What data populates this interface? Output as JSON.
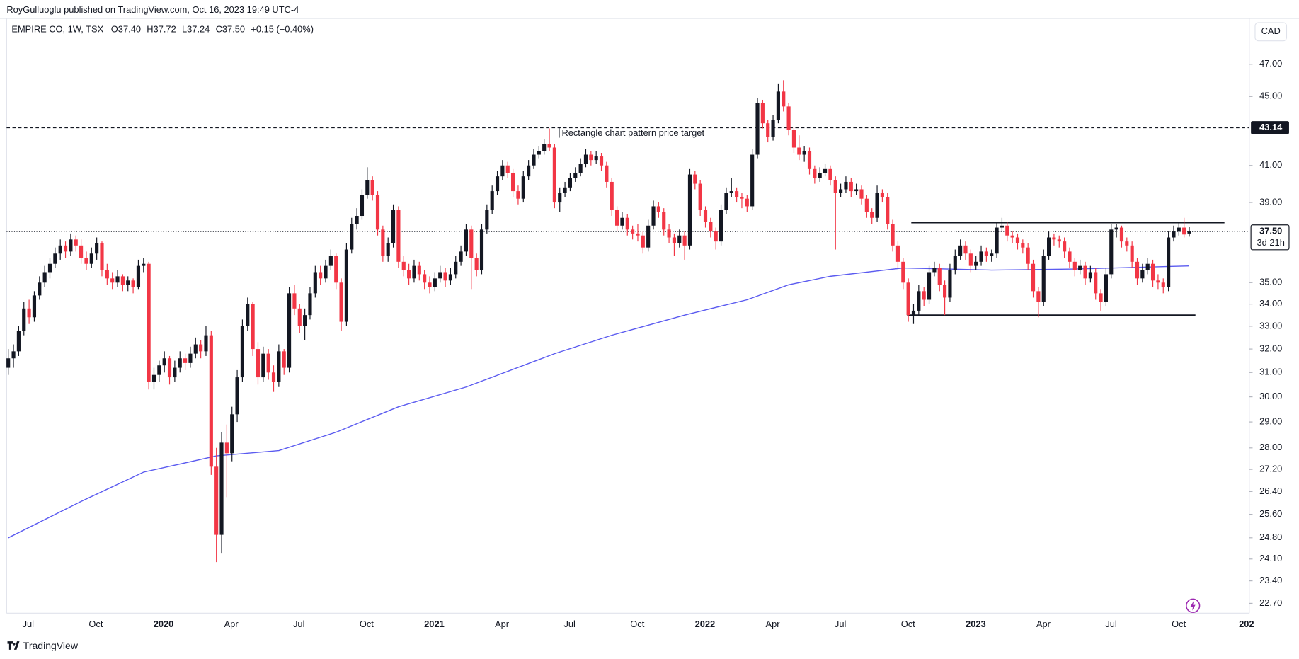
{
  "header": {
    "publisher": "RoyGulluoglu published on TradingView.com, Oct 16, 2023 19:49 UTC-4",
    "symbol": "EMPIRE CO, 1W, TSX",
    "o_label": "O",
    "open": "37.40",
    "h_label": "H",
    "high": "37.72",
    "l_label": "L",
    "low": "37.24",
    "c_label": "C",
    "close": "37.50",
    "change": "+0.15 (+0.40%)"
  },
  "currency_button": "CAD",
  "footer": "TradingView",
  "chart_data": {
    "type": "candlestick",
    "log_scale": true,
    "colors": {
      "up": "#131722",
      "down": "#f23645"
    },
    "ylim": [
      22.4,
      50.0
    ],
    "yticks": [
      {
        "value": 22.7,
        "label": "22.70"
      },
      {
        "value": 23.4,
        "label": "23.40"
      },
      {
        "value": 24.1,
        "label": "24.10"
      },
      {
        "value": 24.8,
        "label": "24.80"
      },
      {
        "value": 25.6,
        "label": "25.60"
      },
      {
        "value": 26.4,
        "label": "26.40"
      },
      {
        "value": 27.2,
        "label": "27.20"
      },
      {
        "value": 28,
        "label": "28.00"
      },
      {
        "value": 29,
        "label": "29.00"
      },
      {
        "value": 30,
        "label": "30.00"
      },
      {
        "value": 31,
        "label": "31.00"
      },
      {
        "value": 32,
        "label": "32.00"
      },
      {
        "value": 33,
        "label": "33.00"
      },
      {
        "value": 34,
        "label": "34.00"
      },
      {
        "value": 35,
        "label": "35.00"
      },
      {
        "value": 39,
        "label": "39.00"
      },
      {
        "value": 41,
        "label": "41.00"
      },
      {
        "value": 45,
        "label": "45.00"
      },
      {
        "value": 47,
        "label": "47.00"
      }
    ],
    "xtick_labels": [
      "Jul",
      "Oct",
      "2020",
      "Apr",
      "Jul",
      "Oct",
      "2021",
      "Apr",
      "Jul",
      "Oct",
      "2022",
      "Apr",
      "Jul",
      "Oct",
      "2023",
      "Apr",
      "Jul",
      "Oct",
      "202"
    ],
    "annotation": "Rectangle chart pattern price target",
    "levels": [
      {
        "value": 43.14,
        "label": "43.14",
        "style": "dashed"
      },
      {
        "value": 37.5,
        "label": "37.50",
        "note": "3d 21h",
        "style": "dotted"
      }
    ],
    "pattern_lines": [
      37.95,
      33.5
    ],
    "moving_average": {
      "color": "#5b5bf0",
      "x": [
        0,
        14,
        26,
        40,
        52,
        63,
        75,
        88,
        105,
        116,
        130,
        142,
        150,
        158,
        172,
        189,
        205,
        227
      ],
      "values": [
        24.8,
        26.05,
        27.1,
        27.7,
        27.9,
        28.6,
        29.6,
        30.4,
        31.8,
        32.6,
        33.5,
        34.2,
        34.9,
        35.3,
        35.7,
        35.6,
        35.65,
        35.8
      ]
    },
    "candles": [
      [
        31.2,
        32.0,
        30.9,
        31.6
      ],
      [
        31.6,
        32.2,
        31.2,
        31.9
      ],
      [
        31.9,
        33.0,
        31.7,
        32.8
      ],
      [
        32.8,
        34.1,
        32.6,
        33.8
      ],
      [
        33.8,
        34.2,
        33.1,
        33.4
      ],
      [
        33.4,
        34.6,
        33.2,
        34.4
      ],
      [
        34.4,
        35.3,
        34.2,
        35.0
      ],
      [
        35.0,
        35.8,
        34.8,
        35.5
      ],
      [
        35.5,
        36.2,
        35.2,
        35.9
      ],
      [
        35.9,
        36.7,
        35.7,
        36.4
      ],
      [
        36.4,
        37.1,
        36.1,
        36.8
      ],
      [
        36.8,
        37.0,
        36.2,
        36.5
      ],
      [
        36.5,
        37.4,
        36.3,
        37.1
      ],
      [
        37.1,
        37.3,
        36.5,
        36.8
      ],
      [
        36.8,
        37.1,
        35.9,
        36.2
      ],
      [
        36.2,
        36.5,
        35.6,
        35.9
      ],
      [
        35.9,
        36.7,
        35.7,
        36.4
      ],
      [
        36.4,
        37.2,
        36.1,
        36.9
      ],
      [
        36.9,
        37.0,
        35.3,
        35.6
      ],
      [
        35.6,
        35.9,
        34.9,
        35.2
      ],
      [
        35.2,
        35.5,
        34.7,
        35.0
      ],
      [
        35.0,
        35.6,
        34.8,
        35.3
      ],
      [
        35.3,
        35.4,
        34.6,
        34.9
      ],
      [
        34.9,
        35.3,
        34.6,
        35.1
      ],
      [
        35.1,
        35.2,
        34.5,
        34.8
      ],
      [
        34.8,
        36.1,
        34.7,
        35.8
      ],
      [
        35.8,
        36.2,
        35.5,
        35.9
      ],
      [
        35.9,
        36.0,
        30.3,
        30.6
      ],
      [
        30.6,
        31.2,
        30.3,
        30.9
      ],
      [
        30.9,
        31.5,
        30.6,
        31.3
      ],
      [
        31.3,
        31.9,
        31.0,
        31.6
      ],
      [
        31.6,
        31.7,
        30.5,
        30.8
      ],
      [
        30.8,
        31.5,
        30.6,
        31.2
      ],
      [
        31.2,
        31.9,
        31.0,
        31.6
      ],
      [
        31.6,
        31.8,
        31.1,
        31.4
      ],
      [
        31.4,
        32.1,
        31.2,
        31.8
      ],
      [
        31.8,
        32.5,
        31.6,
        32.2
      ],
      [
        32.2,
        32.4,
        31.6,
        31.9
      ],
      [
        31.9,
        33.0,
        31.7,
        32.6
      ],
      [
        32.6,
        32.8,
        27.0,
        27.3
      ],
      [
        27.3,
        28.0,
        24.0,
        24.9
      ],
      [
        24.9,
        28.6,
        24.3,
        28.2
      ],
      [
        28.2,
        28.9,
        26.2,
        27.8
      ],
      [
        27.8,
        29.6,
        27.5,
        29.3
      ],
      [
        29.3,
        31.1,
        29.0,
        30.8
      ],
      [
        30.8,
        33.3,
        30.6,
        33.0
      ],
      [
        33.0,
        34.3,
        32.8,
        34.0
      ],
      [
        34.0,
        34.1,
        31.7,
        32.0
      ],
      [
        32.0,
        32.3,
        30.5,
        30.8
      ],
      [
        30.8,
        32.1,
        30.6,
        31.8
      ],
      [
        31.8,
        32.0,
        30.7,
        31.0
      ],
      [
        31.0,
        31.3,
        30.2,
        30.6
      ],
      [
        30.6,
        32.2,
        30.4,
        31.9
      ],
      [
        31.9,
        32.0,
        30.9,
        31.2
      ],
      [
        31.2,
        34.8,
        31.0,
        34.5
      ],
      [
        34.5,
        34.9,
        33.5,
        33.8
      ],
      [
        33.8,
        34.0,
        32.7,
        33.0
      ],
      [
        33.0,
        33.8,
        32.4,
        33.5
      ],
      [
        33.5,
        34.8,
        33.3,
        34.5
      ],
      [
        34.5,
        35.8,
        34.3,
        35.5
      ],
      [
        35.5,
        35.8,
        34.9,
        35.2
      ],
      [
        35.2,
        36.1,
        35.0,
        35.8
      ],
      [
        35.8,
        36.6,
        35.6,
        36.3
      ],
      [
        36.3,
        36.4,
        34.7,
        35.0
      ],
      [
        35.0,
        35.2,
        32.8,
        33.2
      ],
      [
        33.2,
        36.9,
        33.0,
        36.6
      ],
      [
        36.6,
        38.2,
        36.4,
        37.9
      ],
      [
        37.9,
        38.7,
        37.6,
        38.3
      ],
      [
        38.3,
        39.7,
        38.1,
        39.4
      ],
      [
        39.4,
        40.9,
        39.2,
        40.2
      ],
      [
        40.2,
        40.4,
        39.1,
        39.4
      ],
      [
        39.4,
        39.6,
        37.3,
        37.6
      ],
      [
        37.6,
        37.8,
        36.0,
        36.3
      ],
      [
        36.3,
        37.2,
        36.0,
        36.9
      ],
      [
        36.9,
        38.9,
        36.7,
        38.6
      ],
      [
        38.6,
        38.8,
        35.7,
        36.0
      ],
      [
        36.0,
        36.3,
        35.3,
        35.6
      ],
      [
        35.6,
        35.9,
        34.9,
        35.2
      ],
      [
        35.2,
        36.1,
        35.0,
        35.8
      ],
      [
        35.8,
        36.0,
        35.1,
        35.4
      ],
      [
        35.4,
        35.6,
        34.7,
        35.0
      ],
      [
        35.0,
        35.3,
        34.5,
        34.8
      ],
      [
        34.8,
        35.5,
        34.6,
        35.2
      ],
      [
        35.2,
        35.8,
        35.0,
        35.5
      ],
      [
        35.5,
        35.7,
        34.8,
        35.1
      ],
      [
        35.1,
        35.7,
        34.9,
        35.4
      ],
      [
        35.4,
        36.3,
        35.2,
        36.0
      ],
      [
        36.0,
        36.8,
        35.8,
        36.5
      ],
      [
        36.5,
        37.9,
        36.3,
        37.6
      ],
      [
        37.6,
        37.8,
        34.7,
        36.2
      ],
      [
        36.2,
        36.4,
        35.3,
        35.6
      ],
      [
        35.6,
        37.9,
        35.4,
        37.6
      ],
      [
        37.6,
        38.9,
        37.4,
        38.6
      ],
      [
        38.6,
        39.9,
        38.4,
        39.6
      ],
      [
        39.6,
        40.7,
        39.4,
        40.4
      ],
      [
        40.4,
        41.3,
        40.2,
        41.0
      ],
      [
        41.0,
        41.2,
        40.3,
        40.6
      ],
      [
        40.6,
        40.8,
        39.3,
        39.6
      ],
      [
        39.6,
        39.9,
        38.9,
        39.2
      ],
      [
        39.2,
        40.7,
        39.0,
        40.4
      ],
      [
        40.4,
        41.3,
        40.2,
        41.0
      ],
      [
        41.0,
        41.9,
        40.8,
        41.6
      ],
      [
        41.6,
        42.1,
        41.4,
        41.8
      ],
      [
        41.8,
        42.5,
        41.6,
        42.2
      ],
      [
        42.2,
        43.1,
        41.8,
        42.0
      ],
      [
        42.0,
        42.2,
        38.7,
        39.0
      ],
      [
        39.0,
        39.8,
        38.5,
        39.5
      ],
      [
        39.5,
        40.1,
        39.3,
        39.8
      ],
      [
        39.8,
        40.6,
        39.6,
        40.3
      ],
      [
        40.3,
        40.9,
        40.1,
        40.6
      ],
      [
        40.6,
        41.4,
        40.4,
        41.1
      ],
      [
        41.1,
        41.9,
        40.9,
        41.6
      ],
      [
        41.6,
        41.8,
        41.0,
        41.3
      ],
      [
        41.3,
        41.8,
        41.1,
        41.5
      ],
      [
        41.5,
        41.7,
        40.7,
        41.0
      ],
      [
        41.0,
        41.2,
        39.8,
        40.1
      ],
      [
        40.1,
        40.3,
        38.3,
        38.6
      ],
      [
        38.6,
        38.8,
        37.5,
        37.8
      ],
      [
        37.8,
        38.5,
        37.6,
        38.2
      ],
      [
        38.2,
        38.4,
        37.3,
        37.6
      ],
      [
        37.6,
        37.8,
        37.1,
        37.4
      ],
      [
        37.4,
        37.9,
        37.0,
        37.3
      ],
      [
        37.3,
        37.5,
        36.4,
        36.7
      ],
      [
        36.7,
        38.1,
        36.5,
        37.8
      ],
      [
        37.8,
        39.1,
        37.6,
        38.8
      ],
      [
        38.8,
        39.0,
        38.2,
        38.5
      ],
      [
        38.5,
        38.7,
        37.3,
        37.6
      ],
      [
        37.6,
        37.9,
        36.9,
        37.2
      ],
      [
        37.2,
        37.4,
        36.3,
        36.9
      ],
      [
        36.9,
        37.6,
        36.7,
        37.3
      ],
      [
        37.3,
        37.5,
        36.1,
        36.8
      ],
      [
        36.8,
        40.8,
        36.6,
        40.5
      ],
      [
        40.5,
        40.7,
        39.7,
        40.0
      ],
      [
        40.0,
        40.2,
        38.3,
        38.6
      ],
      [
        38.6,
        38.8,
        37.7,
        38.0
      ],
      [
        38.0,
        38.2,
        37.2,
        37.5
      ],
      [
        37.5,
        37.7,
        36.6,
        37.0
      ],
      [
        37.0,
        38.9,
        36.8,
        38.6
      ],
      [
        38.6,
        39.8,
        38.4,
        39.5
      ],
      [
        39.5,
        40.3,
        39.3,
        39.6
      ],
      [
        39.6,
        39.8,
        39.0,
        39.3
      ],
      [
        39.3,
        39.5,
        38.7,
        39.2
      ],
      [
        39.2,
        39.4,
        38.5,
        38.8
      ],
      [
        38.8,
        41.9,
        38.6,
        41.6
      ],
      [
        41.6,
        44.9,
        41.4,
        44.6
      ],
      [
        44.6,
        44.8,
        43.1,
        43.4
      ],
      [
        43.4,
        43.6,
        42.3,
        42.6
      ],
      [
        42.6,
        43.9,
        42.4,
        43.6
      ],
      [
        43.6,
        45.8,
        43.4,
        45.3
      ],
      [
        45.3,
        46.0,
        44.1,
        44.4
      ],
      [
        44.4,
        44.6,
        42.7,
        43.0
      ],
      [
        43.0,
        43.2,
        41.7,
        42.0
      ],
      [
        42.0,
        42.7,
        41.3,
        41.6
      ],
      [
        41.6,
        42.1,
        41.2,
        41.8
      ],
      [
        41.8,
        42.0,
        40.5,
        40.8
      ],
      [
        40.8,
        41.0,
        40.0,
        40.3
      ],
      [
        40.3,
        40.9,
        40.1,
        40.6
      ],
      [
        40.6,
        41.1,
        40.4,
        40.8
      ],
      [
        40.8,
        41.0,
        39.9,
        40.2
      ],
      [
        40.2,
        40.4,
        36.6,
        39.5
      ],
      [
        39.5,
        40.0,
        39.3,
        39.7
      ],
      [
        39.7,
        40.4,
        39.5,
        40.1
      ],
      [
        40.1,
        40.3,
        39.3,
        39.6
      ],
      [
        39.6,
        40.0,
        39.4,
        39.7
      ],
      [
        39.7,
        39.9,
        38.9,
        39.2
      ],
      [
        39.2,
        39.4,
        38.2,
        38.5
      ],
      [
        38.5,
        38.7,
        37.9,
        38.2
      ],
      [
        38.2,
        39.9,
        38.0,
        39.5
      ],
      [
        39.5,
        39.7,
        39.0,
        39.3
      ],
      [
        39.3,
        39.5,
        37.6,
        37.9
      ],
      [
        37.9,
        38.1,
        36.5,
        36.8
      ],
      [
        36.8,
        37.0,
        35.7,
        36.0
      ],
      [
        36.0,
        36.2,
        34.7,
        35.0
      ],
      [
        35.0,
        35.2,
        33.2,
        33.5
      ],
      [
        33.5,
        34.0,
        33.1,
        33.7
      ],
      [
        33.7,
        34.9,
        33.5,
        34.6
      ],
      [
        34.6,
        34.8,
        33.9,
        34.2
      ],
      [
        34.2,
        35.8,
        34.0,
        35.5
      ],
      [
        35.5,
        36.0,
        35.3,
        35.7
      ],
      [
        35.7,
        35.9,
        34.6,
        34.9
      ],
      [
        34.9,
        35.1,
        33.5,
        34.3
      ],
      [
        34.3,
        35.9,
        34.1,
        35.6
      ],
      [
        35.6,
        36.6,
        35.4,
        36.3
      ],
      [
        36.3,
        37.1,
        36.1,
        36.8
      ],
      [
        36.8,
        37.0,
        36.1,
        36.4
      ],
      [
        36.4,
        36.6,
        35.5,
        35.8
      ],
      [
        35.8,
        36.3,
        35.6,
        36.0
      ],
      [
        36.0,
        36.8,
        35.8,
        36.5
      ],
      [
        36.5,
        36.7,
        36.0,
        36.3
      ],
      [
        36.3,
        36.6,
        36.0,
        36.4
      ],
      [
        36.4,
        38.0,
        36.2,
        37.7
      ],
      [
        37.7,
        38.2,
        37.5,
        37.8
      ],
      [
        37.8,
        38.0,
        37.0,
        37.3
      ],
      [
        37.3,
        37.5,
        36.9,
        37.2
      ],
      [
        37.2,
        37.4,
        36.6,
        36.9
      ],
      [
        36.9,
        37.1,
        36.4,
        36.7
      ],
      [
        36.7,
        36.9,
        35.6,
        35.9
      ],
      [
        35.9,
        36.1,
        34.3,
        34.6
      ],
      [
        34.6,
        34.8,
        33.4,
        34.1
      ],
      [
        34.1,
        36.6,
        33.9,
        36.3
      ],
      [
        36.3,
        37.5,
        36.1,
        37.2
      ],
      [
        37.2,
        37.4,
        36.8,
        37.1
      ],
      [
        37.1,
        37.3,
        36.7,
        37.0
      ],
      [
        37.0,
        37.2,
        36.2,
        36.5
      ],
      [
        36.5,
        36.7,
        35.7,
        36.0
      ],
      [
        36.0,
        36.2,
        35.3,
        35.6
      ],
      [
        35.6,
        36.1,
        35.4,
        35.8
      ],
      [
        35.8,
        36.0,
        34.9,
        35.2
      ],
      [
        35.2,
        35.8,
        35.0,
        35.5
      ],
      [
        35.5,
        35.7,
        34.2,
        34.5
      ],
      [
        34.5,
        34.7,
        33.7,
        34.1
      ],
      [
        34.1,
        35.7,
        33.9,
        35.4
      ],
      [
        35.4,
        37.9,
        35.2,
        37.6
      ],
      [
        37.6,
        37.9,
        37.2,
        37.7
      ],
      [
        37.7,
        37.8,
        36.7,
        37.0
      ],
      [
        37.0,
        37.2,
        36.5,
        36.8
      ],
      [
        36.8,
        37.0,
        35.7,
        36.0
      ],
      [
        36.0,
        36.2,
        34.9,
        35.2
      ],
      [
        35.2,
        35.9,
        35.0,
        35.6
      ],
      [
        35.6,
        36.2,
        35.4,
        35.9
      ],
      [
        35.9,
        36.1,
        34.8,
        35.1
      ],
      [
        35.1,
        35.4,
        34.7,
        35.0
      ],
      [
        35.0,
        35.2,
        34.5,
        34.8
      ],
      [
        34.8,
        37.5,
        34.6,
        37.2
      ],
      [
        37.2,
        37.8,
        37.0,
        37.5
      ],
      [
        37.5,
        38.0,
        37.3,
        37.7
      ],
      [
        37.7,
        38.2,
        37.2,
        37.35
      ],
      [
        37.4,
        37.72,
        37.24,
        37.5
      ]
    ]
  }
}
